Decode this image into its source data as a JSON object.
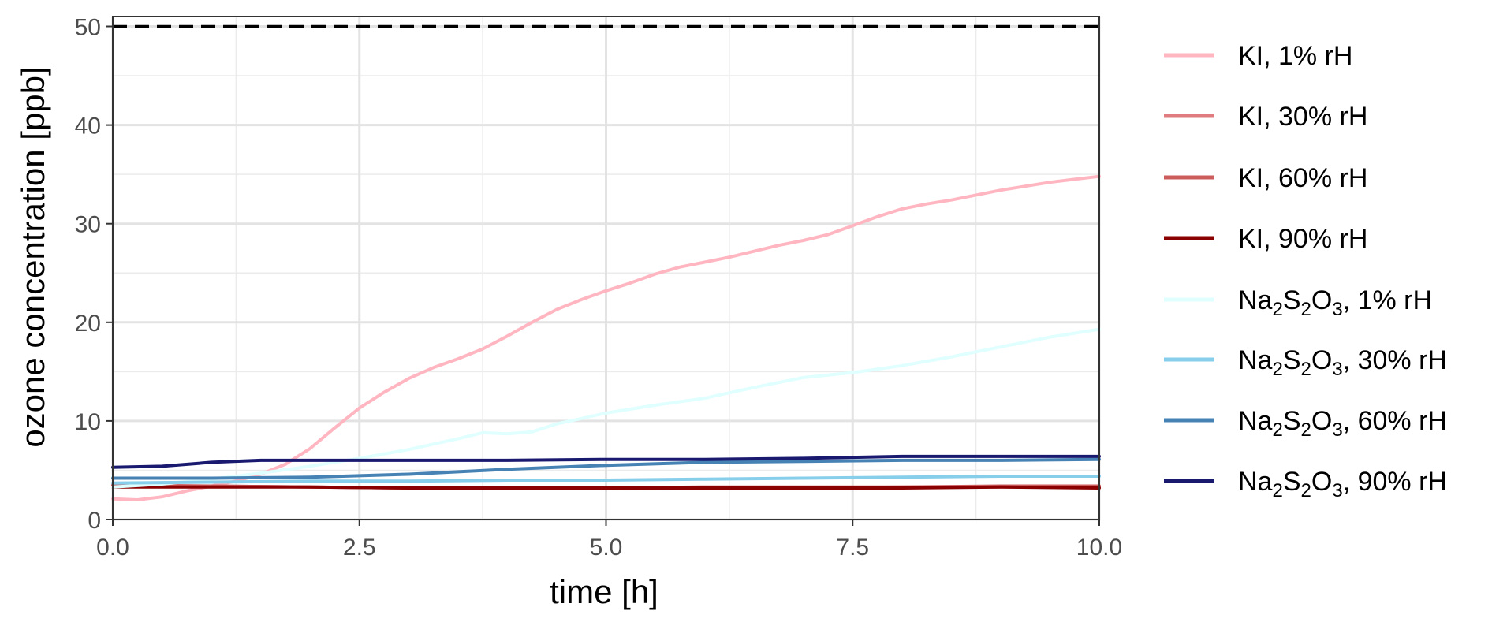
{
  "chart_data": {
    "type": "line",
    "xlabel": "time [h]",
    "ylabel": "ozone concentration [ppb]",
    "xlim": [
      0,
      10
    ],
    "ylim": [
      0,
      51
    ],
    "x_ticks": [
      "0.0",
      "2.5",
      "5.0",
      "7.5",
      "10.0"
    ],
    "y_ticks": [
      "0",
      "10",
      "20",
      "30",
      "40",
      "50"
    ],
    "grid": true,
    "legend_position": "right",
    "reference_line": {
      "y": 50,
      "style": "dashed",
      "color": "#000000"
    },
    "series": [
      {
        "label": {
          "parts": [
            {
              "t": "KI, 1% rH",
              "sub": false
            }
          ]
        },
        "color": "#FFB6C1",
        "points": [
          [
            0,
            2.1
          ],
          [
            0.25,
            2.0
          ],
          [
            0.5,
            2.3
          ],
          [
            0.75,
            2.9
          ],
          [
            1,
            3.4
          ],
          [
            1.25,
            3.9
          ],
          [
            1.5,
            4.6
          ],
          [
            1.75,
            5.6
          ],
          [
            2,
            7.2
          ],
          [
            2.25,
            9.3
          ],
          [
            2.5,
            11.3
          ],
          [
            2.75,
            12.9
          ],
          [
            3,
            14.3
          ],
          [
            3.25,
            15.4
          ],
          [
            3.5,
            16.3
          ],
          [
            3.75,
            17.3
          ],
          [
            4,
            18.6
          ],
          [
            4.25,
            20.0
          ],
          [
            4.5,
            21.3
          ],
          [
            4.75,
            22.3
          ],
          [
            5,
            23.2
          ],
          [
            5.25,
            24.0
          ],
          [
            5.5,
            24.9
          ],
          [
            5.75,
            25.6
          ],
          [
            6,
            26.1
          ],
          [
            6.25,
            26.6
          ],
          [
            6.5,
            27.2
          ],
          [
            6.75,
            27.8
          ],
          [
            7,
            28.3
          ],
          [
            7.25,
            28.9
          ],
          [
            7.5,
            29.8
          ],
          [
            7.75,
            30.7
          ],
          [
            8,
            31.5
          ],
          [
            8.25,
            32.0
          ],
          [
            8.5,
            32.4
          ],
          [
            8.75,
            32.9
          ],
          [
            9,
            33.4
          ],
          [
            9.25,
            33.8
          ],
          [
            9.5,
            34.2
          ],
          [
            9.75,
            34.5
          ],
          [
            10,
            34.8
          ]
        ]
      },
      {
        "label": {
          "parts": [
            {
              "t": "KI, 30% rH",
              "sub": false
            }
          ]
        },
        "color": "#E07B80",
        "points": [
          [
            0,
            3.4
          ],
          [
            1,
            3.4
          ],
          [
            2,
            3.3
          ],
          [
            3,
            3.2
          ],
          [
            4,
            3.2
          ],
          [
            5,
            3.2
          ],
          [
            6,
            3.2
          ],
          [
            7,
            3.2
          ],
          [
            8,
            3.3
          ],
          [
            9,
            3.3
          ],
          [
            10,
            3.3
          ]
        ]
      },
      {
        "label": {
          "parts": [
            {
              "t": "KI, 60% rH",
              "sub": false
            }
          ]
        },
        "color": "#CD5C5C",
        "points": [
          [
            0,
            3.5
          ],
          [
            1,
            3.4
          ],
          [
            2,
            3.3
          ],
          [
            3,
            3.2
          ],
          [
            4,
            3.2
          ],
          [
            5,
            3.2
          ],
          [
            6,
            3.3
          ],
          [
            7,
            3.3
          ],
          [
            8,
            3.3
          ],
          [
            9,
            3.4
          ],
          [
            10,
            3.4
          ]
        ]
      },
      {
        "label": {
          "parts": [
            {
              "t": "KI, 90% rH",
              "sub": false
            }
          ]
        },
        "color": "#8B0000",
        "points": [
          [
            0,
            3.3
          ],
          [
            1,
            3.3
          ],
          [
            2,
            3.3
          ],
          [
            3,
            3.2
          ],
          [
            4,
            3.2
          ],
          [
            5,
            3.2
          ],
          [
            6,
            3.2
          ],
          [
            7,
            3.2
          ],
          [
            8,
            3.2
          ],
          [
            9,
            3.3
          ],
          [
            10,
            3.2
          ]
        ]
      },
      {
        "label": {
          "parts": [
            {
              "t": "Na",
              "sub": false
            },
            {
              "t": "2",
              "sub": true
            },
            {
              "t": "S",
              "sub": false
            },
            {
              "t": "2",
              "sub": true
            },
            {
              "t": "O",
              "sub": false
            },
            {
              "t": "3",
              "sub": true
            },
            {
              "t": ", 1% rH",
              "sub": false
            }
          ]
        },
        "color": "#E0FFFF",
        "points": [
          [
            0,
            3.3
          ],
          [
            0.5,
            3.6
          ],
          [
            1,
            4.1
          ],
          [
            1.5,
            4.7
          ],
          [
            2,
            5.4
          ],
          [
            2.5,
            6.2
          ],
          [
            3,
            7.1
          ],
          [
            3.5,
            8.2
          ],
          [
            3.75,
            8.8
          ],
          [
            4,
            8.7
          ],
          [
            4.25,
            8.9
          ],
          [
            4.5,
            9.7
          ],
          [
            5,
            10.8
          ],
          [
            5.5,
            11.6
          ],
          [
            6,
            12.3
          ],
          [
            6.5,
            13.4
          ],
          [
            7,
            14.4
          ],
          [
            7.5,
            14.9
          ],
          [
            8,
            15.6
          ],
          [
            8.5,
            16.5
          ],
          [
            9,
            17.5
          ],
          [
            9.5,
            18.5
          ],
          [
            10,
            19.3
          ]
        ]
      },
      {
        "label": {
          "parts": [
            {
              "t": "Na",
              "sub": false
            },
            {
              "t": "2",
              "sub": true
            },
            {
              "t": "S",
              "sub": false
            },
            {
              "t": "2",
              "sub": true
            },
            {
              "t": "O",
              "sub": false
            },
            {
              "t": "3",
              "sub": true
            },
            {
              "t": ", 30% rH",
              "sub": false
            }
          ]
        },
        "color": "#87CEEB",
        "points": [
          [
            0,
            3.7
          ],
          [
            1,
            3.8
          ],
          [
            2,
            3.9
          ],
          [
            3,
            3.9
          ],
          [
            4,
            4.0
          ],
          [
            5,
            4.0
          ],
          [
            6,
            4.1
          ],
          [
            7,
            4.2
          ],
          [
            8,
            4.3
          ],
          [
            9,
            4.4
          ],
          [
            10,
            4.4
          ]
        ]
      },
      {
        "label": {
          "parts": [
            {
              "t": "Na",
              "sub": false
            },
            {
              "t": "2",
              "sub": true
            },
            {
              "t": "S",
              "sub": false
            },
            {
              "t": "2",
              "sub": true
            },
            {
              "t": "O",
              "sub": false
            },
            {
              "t": "3",
              "sub": true
            },
            {
              "t": ", 60% rH",
              "sub": false
            }
          ]
        },
        "color": "#4682B4",
        "points": [
          [
            0,
            4.2
          ],
          [
            1,
            4.2
          ],
          [
            2,
            4.3
          ],
          [
            3,
            4.6
          ],
          [
            4,
            5.1
          ],
          [
            5,
            5.5
          ],
          [
            6,
            5.8
          ],
          [
            7,
            5.9
          ],
          [
            8,
            6.0
          ],
          [
            9,
            6.0
          ],
          [
            10,
            6.1
          ]
        ]
      },
      {
        "label": {
          "parts": [
            {
              "t": "Na",
              "sub": false
            },
            {
              "t": "2",
              "sub": true
            },
            {
              "t": "S",
              "sub": false
            },
            {
              "t": "2",
              "sub": true
            },
            {
              "t": "O",
              "sub": false
            },
            {
              "t": "3",
              "sub": true
            },
            {
              "t": ", 90% rH",
              "sub": false
            }
          ]
        },
        "color": "#191970",
        "points": [
          [
            0,
            5.3
          ],
          [
            0.5,
            5.4
          ],
          [
            1,
            5.8
          ],
          [
            1.5,
            6.0
          ],
          [
            2,
            6.0
          ],
          [
            2.5,
            6.0
          ],
          [
            3,
            6.0
          ],
          [
            4,
            6.0
          ],
          [
            5,
            6.1
          ],
          [
            6,
            6.1
          ],
          [
            7,
            6.2
          ],
          [
            8,
            6.4
          ],
          [
            9,
            6.4
          ],
          [
            10,
            6.4
          ]
        ]
      }
    ]
  }
}
